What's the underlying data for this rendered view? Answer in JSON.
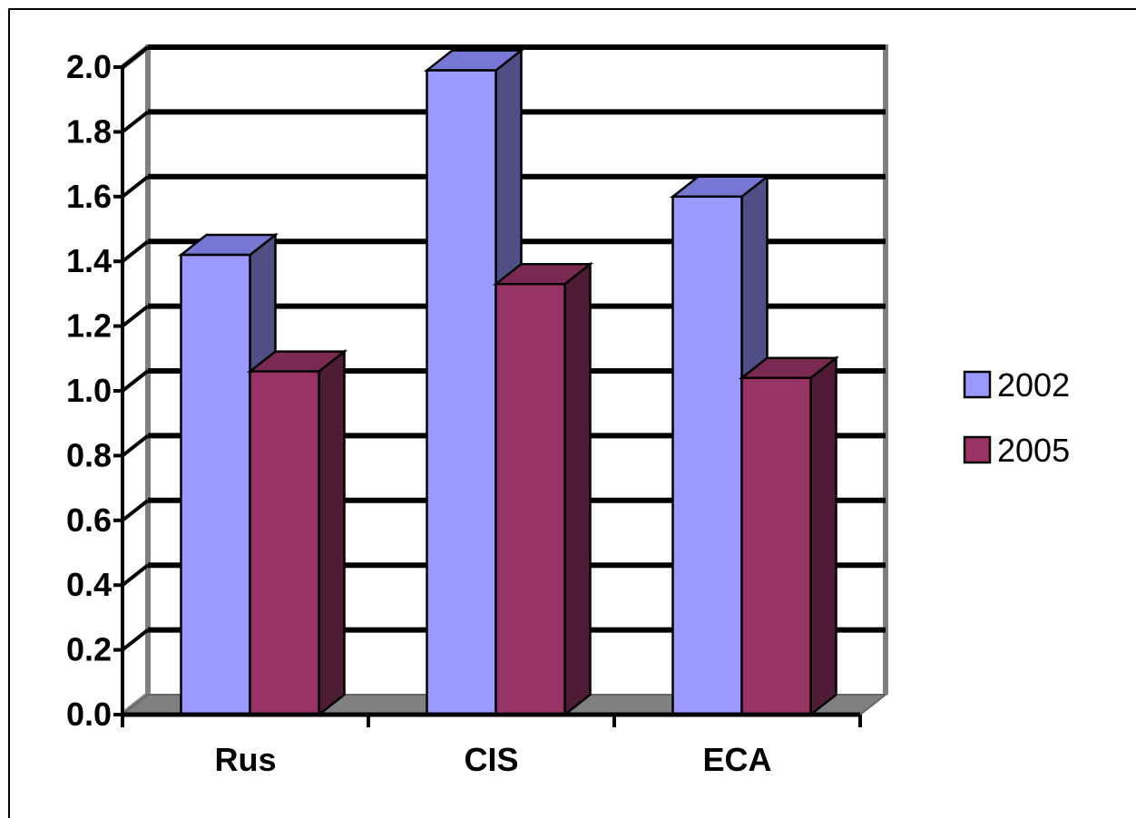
{
  "chart_data": {
    "type": "bar",
    "categories": [
      "Rus",
      "CIS",
      "ECA"
    ],
    "series": [
      {
        "name": "2002",
        "values": [
          1.42,
          1.99,
          1.6
        ],
        "color": "#9999FF",
        "side_color": "#4F4F86"
      },
      {
        "name": "2005",
        "values": [
          1.06,
          1.33,
          1.04
        ],
        "color": "#993366",
        "side_color": "#4E1C34"
      }
    ],
    "yticks": [
      "0.0",
      "0.2",
      "0.4",
      "0.6",
      "0.8",
      "1.0",
      "1.2",
      "1.4",
      "1.6",
      "1.8",
      "2.0"
    ],
    "ylim": [
      0,
      2.0
    ],
    "title": "",
    "xlabel": "",
    "ylabel": "",
    "grid": true,
    "legend": "right",
    "style": "3d-column",
    "colors": {
      "wall": "#808080",
      "floor": "#808080",
      "gridline": "#000000",
      "border": "#000000"
    }
  }
}
